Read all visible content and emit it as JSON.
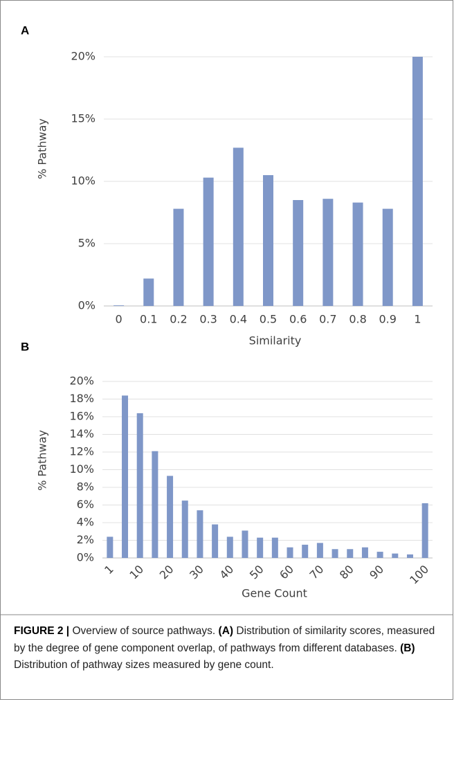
{
  "chart_data": [
    {
      "type": "bar",
      "panel": "A",
      "ylabel": "% Pathway",
      "xlabel": "Similarity",
      "categories": [
        "0",
        "0.1",
        "0.2",
        "0.3",
        "0.4",
        "0.5",
        "0.6",
        "0.7",
        "0.8",
        "0.9",
        "1"
      ],
      "values": [
        0.05,
        2.2,
        7.8,
        10.3,
        12.7,
        10.5,
        8.5,
        8.6,
        8.3,
        7.8,
        20
      ],
      "color": "#7f97c8",
      "ylim": [
        0,
        20
      ],
      "yticks": [
        {
          "value": 0,
          "label": "0%"
        },
        {
          "value": 5,
          "label": "5%"
        },
        {
          "value": 10,
          "label": "10%"
        },
        {
          "value": 15,
          "label": "15%"
        },
        {
          "value": 20,
          "label": "20%"
        }
      ],
      "grid": true
    },
    {
      "type": "bar",
      "panel": "B",
      "ylabel": "% Pathway",
      "xlabel": "Gene Count",
      "categories": [
        "1",
        null,
        "10",
        null,
        "20",
        null,
        "30",
        null,
        "40",
        null,
        "50",
        null,
        "60",
        null,
        "70",
        null,
        "80",
        null,
        "90",
        null,
        null,
        "100"
      ],
      "values": [
        2.4,
        18.4,
        16.4,
        12.1,
        9.3,
        6.5,
        5.4,
        3.8,
        2.4,
        3.1,
        2.3,
        2.3,
        1.2,
        1.5,
        1.7,
        1.0,
        1.0,
        1.2,
        0.7,
        0.5,
        0.4,
        6.2
      ],
      "color": "#7f97c8",
      "ylim": [
        0,
        20
      ],
      "yticks": [
        {
          "value": 0,
          "label": "0%"
        },
        {
          "value": 2,
          "label": "2%"
        },
        {
          "value": 4,
          "label": "4%"
        },
        {
          "value": 6,
          "label": "6%"
        },
        {
          "value": 8,
          "label": "8%"
        },
        {
          "value": 10,
          "label": "10%"
        },
        {
          "value": 12,
          "label": "12%"
        },
        {
          "value": 14,
          "label": "14%"
        },
        {
          "value": 16,
          "label": "16%"
        },
        {
          "value": 18,
          "label": "18%"
        },
        {
          "value": 20,
          "label": "20%"
        }
      ],
      "grid": true
    }
  ],
  "caption": {
    "label": "FIGURE 2 |",
    "text1": "Overview of source pathways.",
    "tagA": "(A)",
    "text2": "Distribution of similarity scores, measured by the degree of gene component overlap, of pathways from different databases.",
    "tagB": "(B)",
    "text3": "Distribution of pathway sizes measured by gene count."
  }
}
